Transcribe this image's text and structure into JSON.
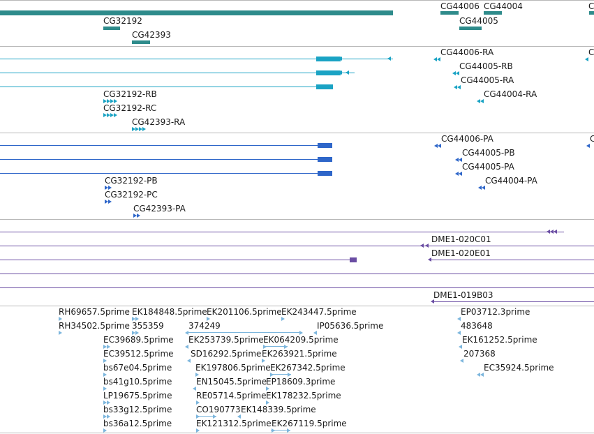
{
  "colors": {
    "gene": "#2e8b8b",
    "rna": "#1aa3c4",
    "protein": "#2e66c9",
    "clone": "#6a4da3",
    "est": "#7cb6dd",
    "separator": "#b8b8b8"
  },
  "tracks": {
    "genes": {
      "labels": [
        "CG32192",
        "CG42393",
        "CG44006",
        "CG44004",
        "CG44005"
      ]
    },
    "transcripts": {
      "labels": [
        "CG44006-RA",
        "CG44005-RB",
        "CG44005-RA",
        "CG44004-RA",
        "CG32192-RB",
        "CG32192-RC",
        "CG42393-RA"
      ]
    },
    "proteins": {
      "labels": [
        "CG44006-PA",
        "CG44005-PB",
        "CG44005-PA",
        "CG44004-PA",
        "CG32192-PB",
        "CG32192-PC",
        "CG42393-PA"
      ]
    },
    "clones": {
      "labels": [
        "DME1-020C01",
        "DME1-020E01",
        "DME1-019B03"
      ]
    },
    "ests": {
      "labels": [
        "RH69657.5prime",
        "EK184848.5prime",
        "EK201106.5prime",
        "EK243447.5prime",
        "EP03712.3prime",
        "RH34502.5prime",
        "355359",
        "374249",
        "IP05636.5prime",
        "483648",
        "EC39689.5prime",
        "EK253739.5prime",
        "EK064209.5prime",
        "EK161252.5prime",
        "EC39512.5prime",
        "SD16292.5prime",
        "EK263921.5prime",
        "207368",
        "bs67e04.5prime",
        "EK197806.5prime",
        "EK267342.5prime",
        "EC35924.5prime",
        "bs41g10.5prime",
        "EN15045.5prime",
        "EP18609.3prime",
        "LP19675.5prime",
        "RE05714.5prime",
        "EK178232.5prime",
        "bs33g12.5prime",
        "CO190773",
        "EK148339.5prime",
        "bs36a12.5prime",
        "EK121312.5prime",
        "EK267119.5prime"
      ]
    }
  }
}
